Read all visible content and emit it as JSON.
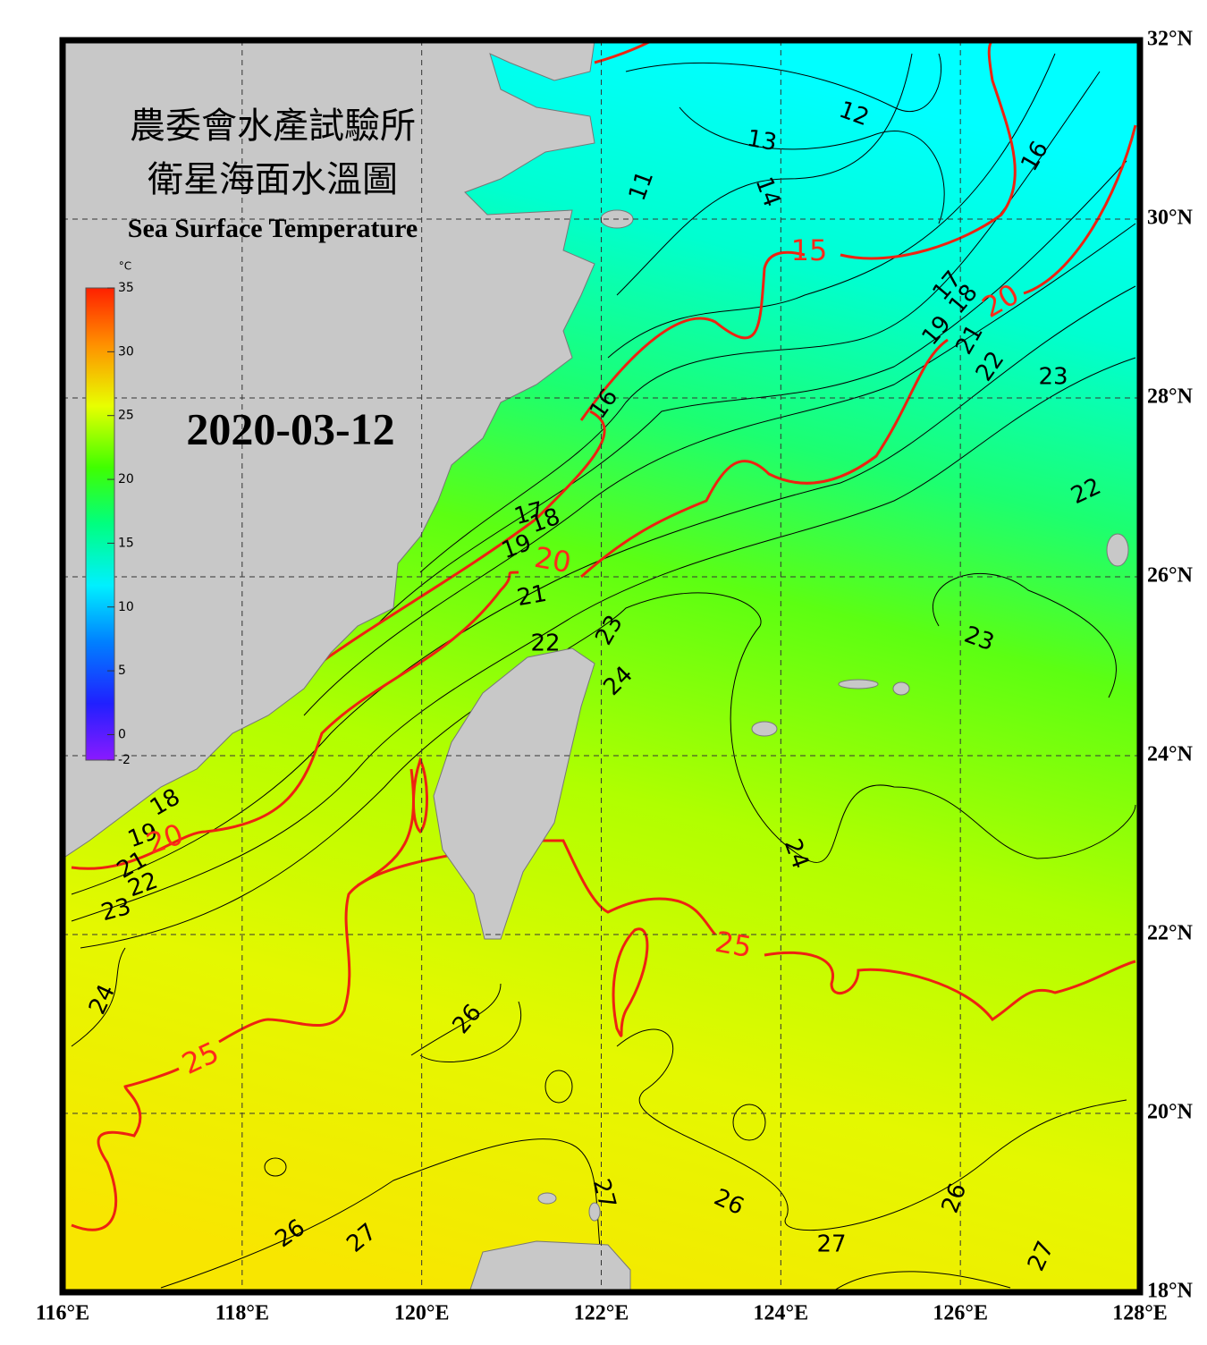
{
  "header": {
    "title_zh_1": "農委會水產試驗所",
    "title_zh_2": "衛星海面水溫圖",
    "title_en": "Sea Surface Temperature",
    "date": "2020-03-12"
  },
  "colorbar": {
    "unit": "°C",
    "range": [
      -2,
      35
    ],
    "ticks": [
      35,
      30,
      25,
      20,
      15,
      10,
      5,
      0,
      -2
    ]
  },
  "map": {
    "lon_range": [
      116,
      128
    ],
    "lat_range": [
      18,
      32
    ],
    "lon_ticks": [
      {
        "value": 116,
        "label": "116°E"
      },
      {
        "value": 118,
        "label": "118°E"
      },
      {
        "value": 120,
        "label": "120°E"
      },
      {
        "value": 122,
        "label": "122°E"
      },
      {
        "value": 124,
        "label": "124°E"
      },
      {
        "value": 126,
        "label": "126°E"
      },
      {
        "value": 128,
        "label": "128°E"
      }
    ],
    "lat_ticks": [
      {
        "value": 18,
        "label": "18°N"
      },
      {
        "value": 20,
        "label": "20°N"
      },
      {
        "value": 22,
        "label": "22°N"
      },
      {
        "value": 24,
        "label": "24°N"
      },
      {
        "value": 26,
        "label": "26°N"
      },
      {
        "value": 28,
        "label": "28°N"
      },
      {
        "value": 30,
        "label": "30°N"
      },
      {
        "value": 32,
        "label": "32°N"
      }
    ],
    "grid": true
  },
  "contours": {
    "major_color": "#ff2a1a",
    "minor_color": "#000000",
    "labels": [
      12,
      13,
      14,
      11,
      15,
      16,
      17,
      18,
      20,
      19,
      21,
      22,
      23,
      16,
      22,
      17,
      18,
      19,
      20,
      21,
      23,
      23,
      22,
      24,
      18,
      19,
      20,
      21,
      22,
      23,
      24,
      25,
      24,
      26,
      25,
      27,
      26,
      26,
      26,
      27,
      27,
      27
    ]
  }
}
